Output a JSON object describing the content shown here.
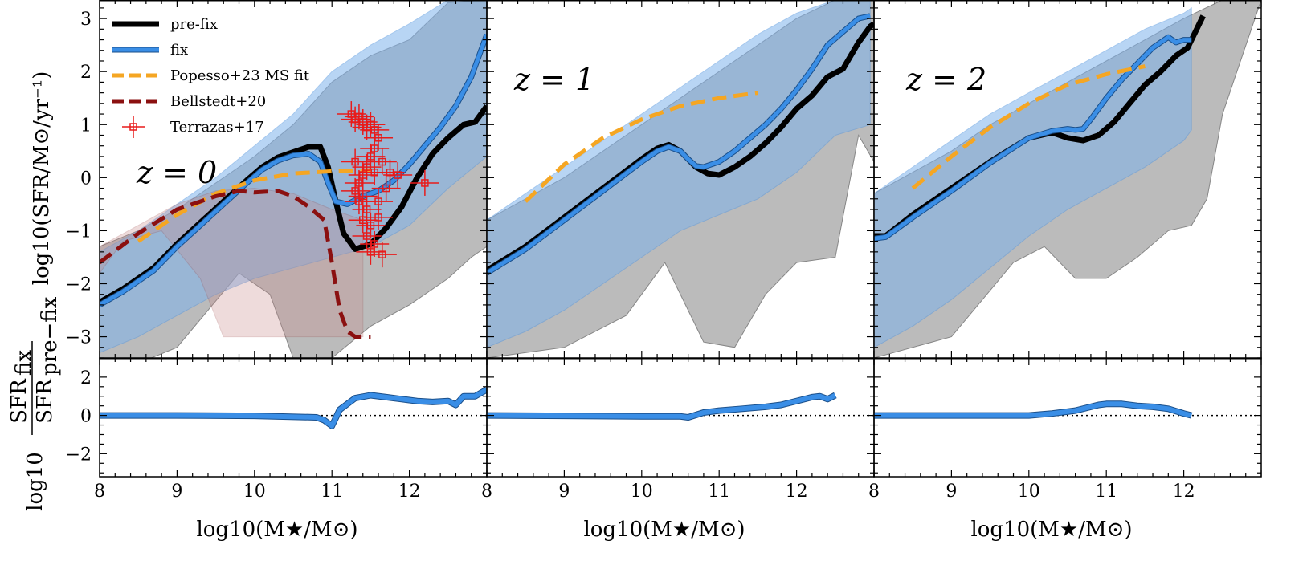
{
  "chart_data": {
    "type": "line",
    "panels": [
      {
        "label": "z = 0",
        "series": [
          {
            "name": "pre-fix",
            "color": "#000000",
            "x": [
              8.0,
              8.3,
              8.7,
              9.0,
              9.3,
              9.6,
              9.9,
              10.1,
              10.3,
              10.5,
              10.7,
              10.85,
              10.95,
              11.05,
              11.15,
              11.3,
              11.5,
              11.7,
              11.9,
              12.1,
              12.3,
              12.5,
              12.7,
              12.85,
              13.0
            ],
            "y": [
              -2.35,
              -2.1,
              -1.7,
              -1.25,
              -0.85,
              -0.45,
              -0.05,
              0.2,
              0.38,
              0.48,
              0.58,
              0.58,
              0.2,
              -0.45,
              -1.05,
              -1.35,
              -1.25,
              -0.95,
              -0.55,
              0.0,
              0.45,
              0.75,
              1.0,
              1.05,
              1.35
            ]
          },
          {
            "name": "fix",
            "color": "#3a8ee6",
            "x": [
              8.0,
              8.3,
              8.7,
              9.0,
              9.3,
              9.6,
              9.9,
              10.1,
              10.3,
              10.5,
              10.7,
              10.85,
              10.95,
              11.05,
              11.2,
              11.4,
              11.6,
              11.8,
              12.0,
              12.2,
              12.4,
              12.6,
              12.8,
              13.0
            ],
            "y": [
              -2.4,
              -2.15,
              -1.75,
              -1.3,
              -0.9,
              -0.5,
              -0.1,
              0.15,
              0.32,
              0.42,
              0.45,
              0.3,
              -0.1,
              -0.45,
              -0.5,
              -0.35,
              -0.25,
              -0.05,
              0.25,
              0.6,
              0.95,
              1.35,
              1.9,
              2.7
            ]
          },
          {
            "name": "Popesso+23 MS fit",
            "color": "#f5a623",
            "x": [
              8.5,
              9.0,
              9.5,
              10.0,
              10.5,
              11.0,
              11.5
            ],
            "y": [
              -1.2,
              -0.7,
              -0.3,
              -0.05,
              0.08,
              0.12,
              0.14
            ]
          },
          {
            "name": "Bellstedt+20",
            "color": "#8b1010",
            "x": [
              8.0,
              8.5,
              9.0,
              9.5,
              9.8,
              10.0,
              10.3,
              10.5,
              10.7,
              10.9,
              11.0,
              11.1,
              11.2,
              11.3,
              11.4,
              11.5
            ],
            "y": [
              -1.6,
              -1.05,
              -0.6,
              -0.35,
              -0.25,
              -0.28,
              -0.25,
              -0.35,
              -0.55,
              -0.8,
              -1.6,
              -2.5,
              -2.9,
              -3.0,
              -3.0,
              -3.0
            ]
          }
        ],
        "terrazas_points": [
          [
            11.25,
            1.2
          ],
          [
            11.3,
            1.1
          ],
          [
            11.35,
            1.15
          ],
          [
            11.4,
            1.05
          ],
          [
            11.45,
            0.95
          ],
          [
            11.5,
            1.0
          ],
          [
            11.55,
            0.9
          ],
          [
            11.6,
            0.75
          ],
          [
            11.55,
            0.55
          ],
          [
            11.5,
            0.4
          ],
          [
            11.45,
            0.2
          ],
          [
            11.4,
            0.05
          ],
          [
            11.35,
            -0.1
          ],
          [
            11.3,
            -0.25
          ],
          [
            11.4,
            -0.35
          ],
          [
            11.35,
            -0.45
          ],
          [
            11.45,
            -0.6
          ],
          [
            11.4,
            -0.8
          ],
          [
            11.5,
            -0.9
          ],
          [
            11.45,
            -1.1
          ],
          [
            11.55,
            -1.25
          ],
          [
            11.6,
            -0.75
          ],
          [
            11.65,
            0.3
          ],
          [
            11.75,
            0.1
          ],
          [
            11.85,
            0.05
          ],
          [
            11.7,
            -0.2
          ],
          [
            12.2,
            -0.1
          ],
          [
            11.55,
            0.1
          ],
          [
            11.6,
            -0.45
          ],
          [
            11.5,
            -1.4
          ],
          [
            11.65,
            -1.45
          ],
          [
            11.3,
            0.3
          ]
        ],
        "ratio": {
          "x": [
            8.0,
            9.0,
            10.0,
            10.8,
            10.9,
            11.0,
            11.1,
            11.3,
            11.5,
            11.7,
            11.9,
            12.1,
            12.3,
            12.5,
            12.6,
            12.7,
            12.85,
            13.0
          ],
          "y": [
            0.0,
            0.0,
            -0.02,
            -0.1,
            -0.25,
            -0.55,
            0.3,
            0.9,
            1.05,
            0.95,
            0.85,
            0.75,
            0.7,
            0.75,
            0.55,
            1.0,
            1.0,
            1.35
          ]
        }
      },
      {
        "label": "z = 1",
        "series": [
          {
            "name": "pre-fix",
            "color": "#000000",
            "x": [
              8.0,
              8.5,
              9.0,
              9.5,
              10.0,
              10.2,
              10.35,
              10.5,
              10.6,
              10.7,
              10.85,
              11.0,
              11.2,
              11.4,
              11.6,
              11.8,
              12.0,
              12.2,
              12.4,
              12.6,
              12.8,
              12.95,
              13.0
            ],
            "y": [
              -1.75,
              -1.3,
              -0.75,
              -0.2,
              0.35,
              0.55,
              0.62,
              0.5,
              0.35,
              0.2,
              0.08,
              0.05,
              0.2,
              0.4,
              0.65,
              0.95,
              1.3,
              1.55,
              1.9,
              2.05,
              2.55,
              2.85,
              2.9
            ]
          },
          {
            "name": "fix",
            "color": "#3a8ee6",
            "x": [
              8.0,
              8.5,
              9.0,
              9.5,
              10.0,
              10.2,
              10.35,
              10.5,
              10.6,
              10.7,
              10.8,
              11.0,
              11.2,
              11.4,
              11.6,
              11.8,
              12.0,
              12.2,
              12.4,
              12.6,
              12.8,
              12.95
            ],
            "y": [
              -1.8,
              -1.35,
              -0.8,
              -0.25,
              0.3,
              0.5,
              0.58,
              0.5,
              0.35,
              0.22,
              0.2,
              0.3,
              0.5,
              0.75,
              1.0,
              1.3,
              1.65,
              2.05,
              2.5,
              2.75,
              3.0,
              3.05
            ]
          },
          {
            "name": "Popesso+23 MS fit",
            "color": "#f5a623",
            "x": [
              8.5,
              9.0,
              9.5,
              10.0,
              10.5,
              11.0,
              11.5
            ],
            "y": [
              -0.45,
              0.25,
              0.75,
              1.1,
              1.35,
              1.5,
              1.6
            ]
          }
        ],
        "ratio": {
          "x": [
            8.0,
            9.0,
            10.0,
            10.5,
            10.6,
            10.8,
            11.0,
            11.3,
            11.6,
            11.8,
            12.0,
            12.2,
            12.3,
            12.4,
            12.5
          ],
          "y": [
            0.0,
            -0.02,
            -0.05,
            -0.05,
            -0.1,
            0.15,
            0.25,
            0.35,
            0.45,
            0.55,
            0.75,
            0.95,
            1.0,
            0.85,
            1.05
          ]
        }
      },
      {
        "label": "z = 2",
        "series": [
          {
            "name": "pre-fix",
            "color": "#000000",
            "x": [
              8.0,
              8.15,
              8.5,
              9.0,
              9.5,
              10.0,
              10.3,
              10.5,
              10.7,
              10.9,
              11.1,
              11.3,
              11.5,
              11.7,
              11.9,
              12.05,
              12.15,
              12.25
            ],
            "y": [
              -1.1,
              -1.1,
              -0.7,
              -0.2,
              0.3,
              0.75,
              0.85,
              0.75,
              0.7,
              0.8,
              1.05,
              1.4,
              1.75,
              2.0,
              2.3,
              2.45,
              2.75,
              3.05
            ]
          },
          {
            "name": "fix",
            "color": "#3a8ee6",
            "x": [
              8.0,
              8.15,
              8.5,
              9.0,
              9.5,
              10.0,
              10.3,
              10.5,
              10.6,
              10.7,
              10.8,
              11.0,
              11.2,
              11.4,
              11.6,
              11.8,
              11.9,
              12.0,
              12.1
            ],
            "y": [
              -1.15,
              -1.12,
              -0.75,
              -0.25,
              0.28,
              0.75,
              0.88,
              0.92,
              0.9,
              0.92,
              1.1,
              1.5,
              1.85,
              2.15,
              2.45,
              2.65,
              2.55,
              2.6,
              2.6
            ]
          },
          {
            "name": "Popesso+23 MS fit",
            "color": "#f5a623",
            "x": [
              8.5,
              9.0,
              9.5,
              10.0,
              10.5,
              11.0,
              11.5
            ],
            "y": [
              -0.2,
              0.4,
              0.95,
              1.4,
              1.75,
              1.95,
              2.1
            ]
          }
        ],
        "ratio": {
          "x": [
            8.0,
            9.0,
            10.0,
            10.3,
            10.6,
            10.9,
            11.0,
            11.2,
            11.4,
            11.6,
            11.8,
            12.0,
            12.1
          ],
          "y": [
            0.0,
            0.0,
            0.0,
            0.1,
            0.25,
            0.55,
            0.6,
            0.6,
            0.5,
            0.45,
            0.35,
            0.1,
            0.0
          ]
        }
      }
    ],
    "legend": [
      "pre-fix",
      "fix",
      "Popesso+23 MS fit",
      "Bellstedt+20",
      "Terrazas+17"
    ],
    "xlabel": "log10(M★/M⊙)",
    "ylabel_top": "log10(SFR/M⊙/yr⁻¹)",
    "ylabel_bottom_prefix": "log10",
    "ylabel_bottom_num": "SFR",
    "ylabel_bottom_num_sub": "fix",
    "ylabel_bottom_den": "SFR",
    "ylabel_bottom_den_sub": "pre−fix",
    "xlim": [
      8,
      13
    ],
    "ylim_top": [
      -3.4,
      3.35
    ],
    "ylim_bottom": [
      -3.2,
      3.0
    ],
    "x_ticks": [
      "8",
      "9",
      "10",
      "11",
      "12"
    ],
    "y_ticks_top": [
      "−3",
      "−2",
      "−1",
      "0",
      "1",
      "2",
      "3"
    ],
    "y_ticks_bottom": [
      "−2",
      "0",
      "2"
    ]
  }
}
